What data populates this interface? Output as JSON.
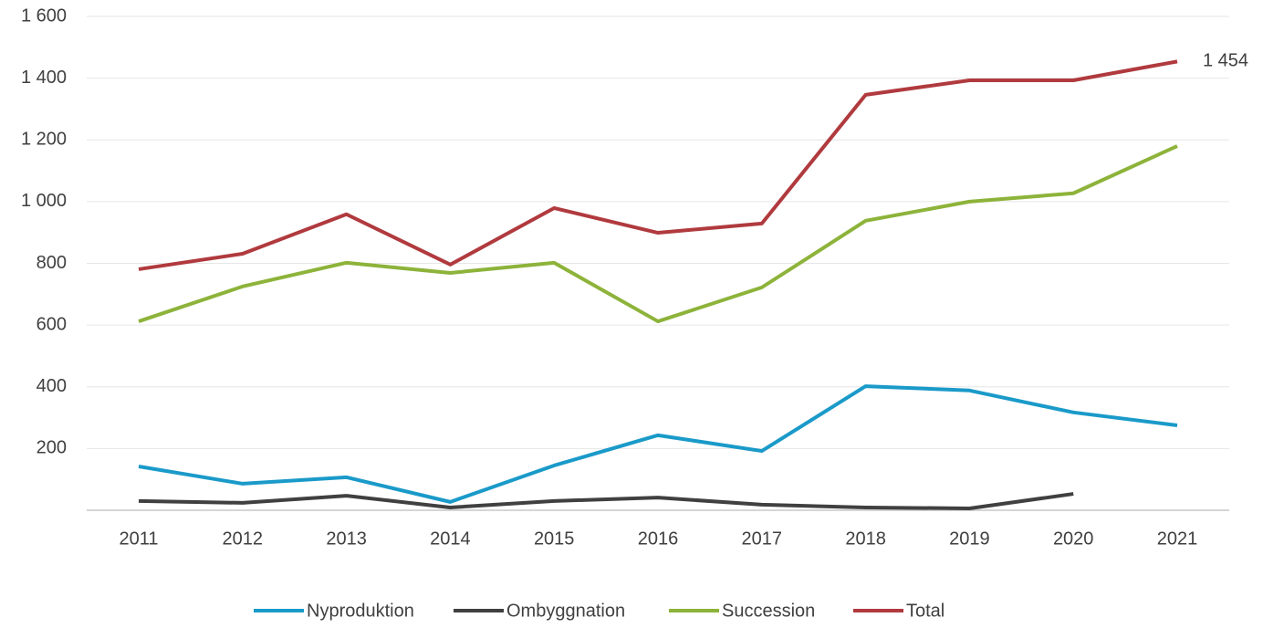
{
  "chart_data": {
    "type": "line",
    "categories": [
      "2011",
      "2012",
      "2013",
      "2014",
      "2015",
      "2016",
      "2017",
      "2018",
      "2019",
      "2020",
      "2021"
    ],
    "series": [
      {
        "name": "Nyproduktion",
        "color": "#1a9ac9",
        "values": [
          142,
          86,
          107,
          27,
          145,
          243,
          192,
          402,
          388,
          317,
          275
        ]
      },
      {
        "name": "Ombyggnation",
        "color": "#404040",
        "values": [
          30,
          24,
          47,
          9,
          30,
          41,
          18,
          9,
          6,
          53,
          null
        ]
      },
      {
        "name": "Succession",
        "color": "#8db33a",
        "values": [
          612,
          725,
          802,
          769,
          802,
          612,
          722,
          938,
          1000,
          1027,
          1180
        ]
      },
      {
        "name": "Total",
        "color": "#b03a3e",
        "values": [
          781,
          831,
          959,
          796,
          979,
          899,
          929,
          1346,
          1393,
          1393,
          1454
        ],
        "value_labels": [
          null,
          null,
          null,
          null,
          null,
          null,
          null,
          null,
          null,
          null,
          "1 454"
        ]
      }
    ],
    "ylim": [
      0,
      1600
    ],
    "yticks": [
      {
        "value": 200,
        "label": "200"
      },
      {
        "value": 400,
        "label": "400"
      },
      {
        "value": 600,
        "label": "600"
      },
      {
        "value": 800,
        "label": "800"
      },
      {
        "value": 1000,
        "label": "1 000"
      },
      {
        "value": 1200,
        "label": "1 200"
      },
      {
        "value": 1400,
        "label": "1 400"
      },
      {
        "value": 1600,
        "label": "1 600"
      }
    ],
    "grid": true,
    "legend": "bottom"
  }
}
